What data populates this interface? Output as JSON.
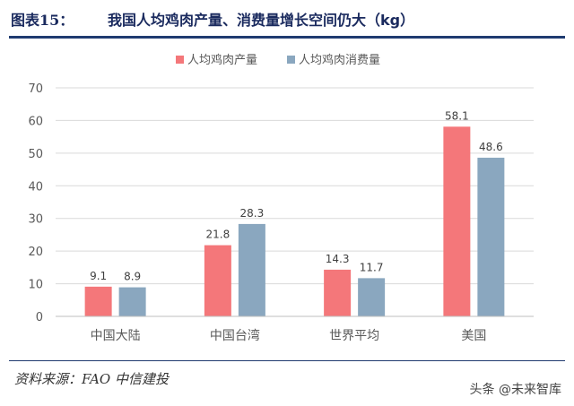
{
  "header": {
    "figure_label": "图表15：",
    "title": "我国人均鸡肉产量、消费量增长空间仍大（kg）"
  },
  "source": "资料来源：FAO  中信建投",
  "watermark": "头条 @未来智库",
  "colors": {
    "production": "#f4777a",
    "consumption": "#8aa7bf",
    "grid": "#d9d9d9",
    "axis_text": "#595959",
    "title": "#1a2a5e"
  },
  "chart_data": {
    "type": "bar",
    "title": "我国人均鸡肉产量、消费量增长空间仍大（kg）",
    "categories": [
      "中国大陆",
      "中国台湾",
      "世界平均",
      "美国"
    ],
    "series": [
      {
        "name": "人均鸡肉产量",
        "values": [
          9.1,
          21.8,
          14.3,
          58.1
        ]
      },
      {
        "name": "人均鸡肉消费量",
        "values": [
          8.9,
          28.3,
          11.7,
          48.6
        ]
      }
    ],
    "ylim": [
      0,
      70
    ],
    "yticks": [
      "0",
      "10",
      "20",
      "30",
      "40",
      "50",
      "60",
      "70"
    ],
    "grid": true,
    "legend": "top-center",
    "data_labels": true
  }
}
